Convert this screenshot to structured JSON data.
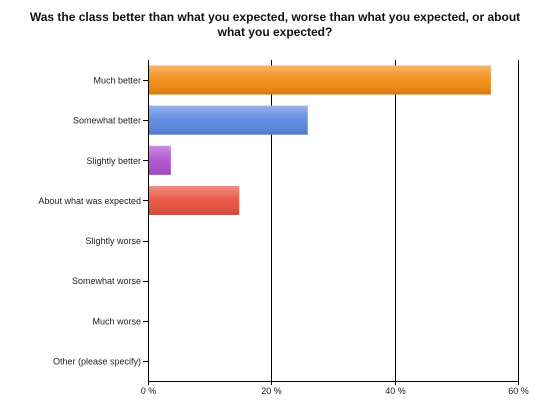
{
  "chart_data": {
    "type": "bar",
    "orientation": "horizontal",
    "title_lines": [
      "Was the class better than what you expected, worse than what you expected, or about",
      "what you expected?"
    ],
    "categories": [
      "Much better",
      "Somewhat better",
      "Slightly better",
      "About what was expected",
      "Slightly worse",
      "Somewhat worse",
      "Much worse",
      "Other (please specify)"
    ],
    "values": [
      55.6,
      25.9,
      3.7,
      14.8,
      0,
      0,
      0,
      0
    ],
    "bar_colors": [
      "#f28a10",
      "#5b87e0",
      "#b04fd0",
      "#e8503c",
      "#888888",
      "#888888",
      "#888888",
      "#888888"
    ],
    "xlim": [
      0,
      60
    ],
    "xticks": [
      0,
      20,
      40,
      60
    ],
    "xtick_labels": [
      "0 %",
      "20 %",
      "40 %",
      "60 %"
    ],
    "grid": true
  }
}
